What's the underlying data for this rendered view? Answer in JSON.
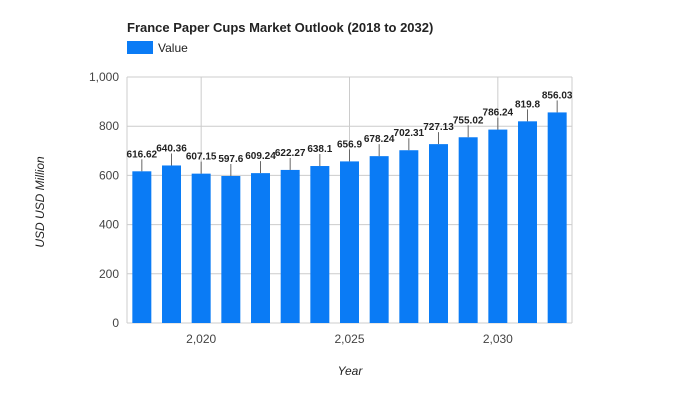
{
  "chart_data": {
    "type": "bar",
    "title": "France Paper Cups Market Outlook (2018 to 2032)",
    "xlabel": "Year",
    "ylabel": "USD USD Million",
    "legend": {
      "position": "top-left",
      "entries": [
        "Value"
      ]
    },
    "series": [
      {
        "name": "Value",
        "color": "#0a7bf5",
        "x": [
          2018,
          2019,
          2020,
          2021,
          2022,
          2023,
          2024,
          2025,
          2026,
          2027,
          2028,
          2029,
          2030,
          2031,
          2032
        ],
        "values": [
          616.62,
          640.36,
          607.15,
          597.6,
          609.24,
          622.27,
          638.1,
          656.9,
          678.24,
          702.31,
          727.13,
          755.02,
          786.24,
          819.8,
          856.03
        ],
        "labels": [
          "616.62",
          "640.36",
          "607.15",
          "597.6",
          "609.24",
          "622.27",
          "638.1",
          "656.9",
          "678.24",
          "702.31",
          "727.13",
          "755.02",
          "786.24",
          "819.8",
          "856.03"
        ]
      }
    ],
    "xticks": [
      2020,
      2025,
      2030
    ],
    "xtick_labels": [
      "2,020",
      "2,025",
      "2,030"
    ],
    "ylim": [
      0,
      1000
    ],
    "yticks": [
      0,
      200,
      400,
      600,
      800,
      1000
    ],
    "ytick_labels": [
      "0",
      "200",
      "400",
      "600",
      "800",
      "1,000"
    ],
    "grid": true
  }
}
